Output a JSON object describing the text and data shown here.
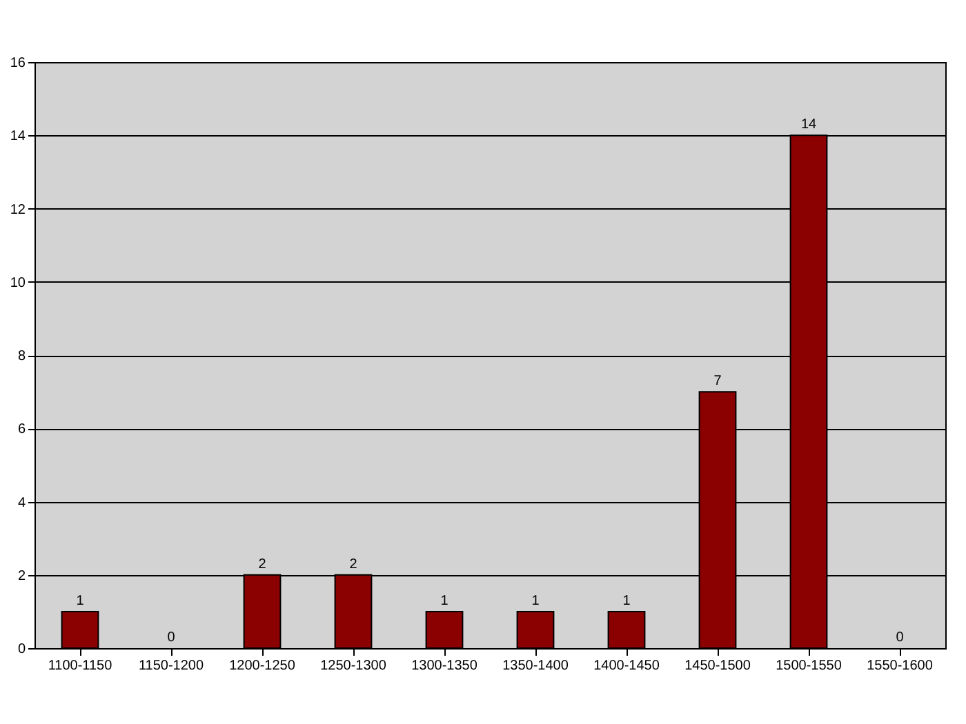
{
  "chart_data": {
    "type": "bar",
    "categories": [
      "1100-1150",
      "1150-1200",
      "1200-1250",
      "1250-1300",
      "1300-1350",
      "1350-1400",
      "1400-1450",
      "1450-1500",
      "1500-1550",
      "1550-1600"
    ],
    "values": [
      1,
      0,
      2,
      2,
      1,
      1,
      1,
      7,
      14,
      0
    ],
    "color": "#8b0000",
    "ylim": [
      0,
      16
    ],
    "yticks": [
      0,
      2,
      4,
      6,
      8,
      10,
      12,
      14,
      16
    ],
    "grid": "y",
    "data_labels": true
  }
}
